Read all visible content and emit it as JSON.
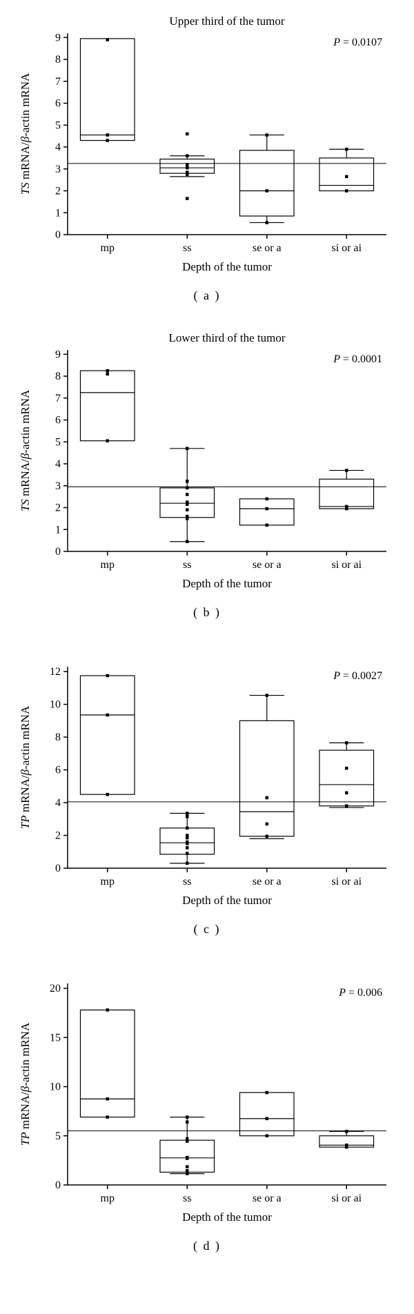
{
  "global": {
    "categories": [
      "mp",
      "ss",
      "se or a",
      "si or ai"
    ],
    "xlabel": "Depth of the tumor",
    "box_width": 0.68,
    "marker_size": 4.5,
    "colors": {
      "background": "#ffffff",
      "stroke": "#000000",
      "marker": "#000000"
    },
    "font": {
      "tick_size": 16,
      "label_size": 17,
      "title_size": 17
    }
  },
  "panels": [
    {
      "id": "a",
      "caption": "( a )",
      "title": "Upper third of the tumor",
      "ylabel_plain_pre": "TS",
      "ylabel_plain_mid": " mRNA/",
      "ylabel_beta": "β",
      "ylabel_plain_post": "-actin mRNA",
      "ylim": [
        0,
        9.2
      ],
      "yticks": [
        0,
        1,
        2,
        3,
        4,
        5,
        6,
        7,
        8,
        9
      ],
      "pvalue": "P  =  0.0107",
      "refline": 3.25,
      "boxes": [
        {
          "q1": 4.3,
          "median": 4.55,
          "q3": 8.95,
          "wlo": 4.3,
          "whi": 8.95,
          "points": [
            4.3,
            4.55,
            8.9
          ]
        },
        {
          "q1": 2.8,
          "median": 3.05,
          "q3": 3.45,
          "wlo": 2.65,
          "whi": 3.6,
          "points": [
            1.65,
            2.75,
            2.85,
            3.05,
            3.1,
            3.2,
            3.6,
            4.6
          ]
        },
        {
          "q1": 0.85,
          "median": 2.0,
          "q3": 3.85,
          "wlo": 0.55,
          "whi": 4.55,
          "points": [
            0.55,
            2.0,
            4.55
          ]
        },
        {
          "q1": 2.0,
          "median": 2.25,
          "q3": 3.5,
          "wlo": 2.0,
          "whi": 3.9,
          "points": [
            2.0,
            2.65,
            3.9
          ]
        }
      ]
    },
    {
      "id": "b",
      "caption": "( b )",
      "title": "Lower third of the tumor",
      "ylabel_plain_pre": "TS",
      "ylabel_plain_mid": " mRNA/",
      "ylabel_beta": "β",
      "ylabel_plain_post": "-actin mRNA",
      "ylim": [
        0,
        9.2
      ],
      "yticks": [
        0,
        1,
        2,
        3,
        4,
        5,
        6,
        7,
        8,
        9
      ],
      "pvalue": "P  =  0.0001",
      "refline": 2.95,
      "boxes": [
        {
          "q1": 5.05,
          "median": 7.25,
          "q3": 8.25,
          "wlo": 5.05,
          "whi": 8.25,
          "points": [
            5.05,
            8.1,
            8.25
          ]
        },
        {
          "q1": 1.55,
          "median": 2.2,
          "q3": 2.9,
          "wlo": 0.45,
          "whi": 4.7,
          "points": [
            0.45,
            1.5,
            1.6,
            1.9,
            2.15,
            2.25,
            2.6,
            2.9,
            3.2,
            4.7
          ]
        },
        {
          "q1": 1.2,
          "median": 1.95,
          "q3": 2.4,
          "wlo": 1.2,
          "whi": 2.4,
          "points": [
            1.2,
            1.95,
            2.4
          ]
        },
        {
          "q1": 1.95,
          "median": 2.05,
          "q3": 3.3,
          "wlo": 1.95,
          "whi": 3.7,
          "points": [
            1.95,
            2.05,
            3.7
          ]
        }
      ]
    },
    {
      "id": "c",
      "caption": "( c )",
      "title": "",
      "ylabel_plain_pre": "TP",
      "ylabel_plain_mid": " mRNA/",
      "ylabel_beta": "β",
      "ylabel_plain_post": "-actin mRNA",
      "ylim": [
        0,
        12.3
      ],
      "yticks": [
        0,
        2,
        4,
        6,
        8,
        10,
        12
      ],
      "pvalue": "P  =  0.0027",
      "refline": 4.05,
      "boxes": [
        {
          "q1": 4.5,
          "median": 9.35,
          "q3": 11.75,
          "wlo": 4.5,
          "whi": 11.75,
          "points": [
            4.5,
            9.35,
            11.75
          ]
        },
        {
          "q1": 0.85,
          "median": 1.55,
          "q3": 2.45,
          "wlo": 0.3,
          "whi": 3.35,
          "points": [
            0.3,
            0.9,
            1.25,
            1.5,
            1.6,
            1.85,
            2.0,
            2.45,
            3.15,
            3.35
          ]
        },
        {
          "q1": 1.95,
          "median": 3.45,
          "q3": 9.0,
          "wlo": 1.8,
          "whi": 10.55,
          "points": [
            1.95,
            2.7,
            4.3,
            10.55
          ]
        },
        {
          "q1": 3.8,
          "median": 5.1,
          "q3": 7.2,
          "wlo": 3.7,
          "whi": 7.65,
          "points": [
            3.8,
            4.6,
            6.1,
            7.65
          ]
        }
      ]
    },
    {
      "id": "d",
      "caption": "( d )",
      "title": "",
      "ylabel_plain_pre": "TP",
      "ylabel_plain_mid": " mRNA/",
      "ylabel_beta": "β",
      "ylabel_plain_post": "-actin mRNA",
      "ylim": [
        0,
        20.5
      ],
      "yticks": [
        0,
        5,
        10,
        15,
        20
      ],
      "pvalue": "P  =  0.006",
      "refline": 5.5,
      "boxes": [
        {
          "q1": 6.9,
          "median": 8.75,
          "q3": 17.8,
          "wlo": 6.9,
          "whi": 17.8,
          "points": [
            6.9,
            8.75,
            17.8
          ]
        },
        {
          "q1": 1.3,
          "median": 2.75,
          "q3": 4.55,
          "wlo": 1.15,
          "whi": 6.9,
          "points": [
            1.15,
            1.3,
            1.45,
            1.85,
            2.7,
            2.8,
            4.45,
            4.7,
            6.4,
            6.9
          ]
        },
        {
          "q1": 5.0,
          "median": 6.75,
          "q3": 9.4,
          "wlo": 5.0,
          "whi": 9.4,
          "points": [
            5.0,
            6.75,
            9.4
          ]
        },
        {
          "q1": 3.85,
          "median": 4.05,
          "q3": 5.0,
          "wlo": 3.85,
          "whi": 5.45,
          "points": [
            3.85,
            4.05,
            5.45
          ]
        }
      ]
    }
  ]
}
